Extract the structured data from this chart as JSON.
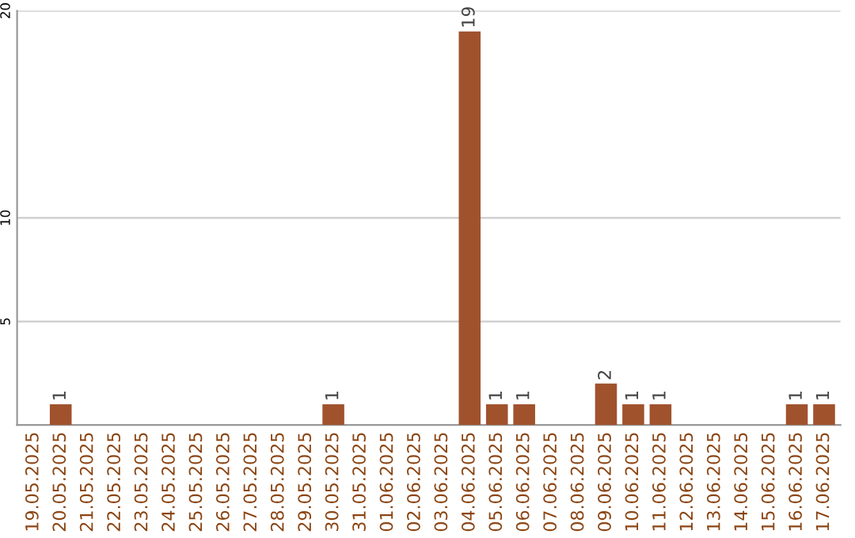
{
  "chart_data": {
    "type": "bar",
    "categories": [
      "19.05.2025",
      "20.05.2025",
      "21.05.2025",
      "22.05.2025",
      "23.05.2025",
      "24.05.2025",
      "25.05.2025",
      "26.05.2025",
      "27.05.2025",
      "28.05.2025",
      "29.05.2025",
      "30.05.2025",
      "31.05.2025",
      "01.06.2025",
      "02.06.2025",
      "03.06.2025",
      "04.06.2025",
      "05.06.2025",
      "06.06.2025",
      "07.06.2025",
      "08.06.2025",
      "09.06.2025",
      "10.06.2025",
      "11.06.2025",
      "12.06.2025",
      "13.06.2025",
      "14.06.2025",
      "15.06.2025",
      "16.06.2025",
      "17.06.2025"
    ],
    "values": [
      0,
      1,
      0,
      0,
      0,
      0,
      0,
      0,
      0,
      0,
      0,
      1,
      0,
      0,
      0,
      0,
      19,
      1,
      1,
      0,
      0,
      2,
      1,
      1,
      0,
      0,
      0,
      0,
      1,
      1
    ],
    "color": "#a0522d",
    "value_labels": [
      null,
      "1",
      null,
      null,
      null,
      null,
      null,
      null,
      null,
      null,
      null,
      "1",
      null,
      null,
      null,
      null,
      "19",
      "1",
      "1",
      null,
      null,
      "2",
      "1",
      "1",
      null,
      null,
      null,
      null,
      "1",
      "1"
    ],
    "ylim": [
      0,
      20
    ],
    "yticks": [
      5,
      10,
      20
    ],
    "grid": "y"
  }
}
